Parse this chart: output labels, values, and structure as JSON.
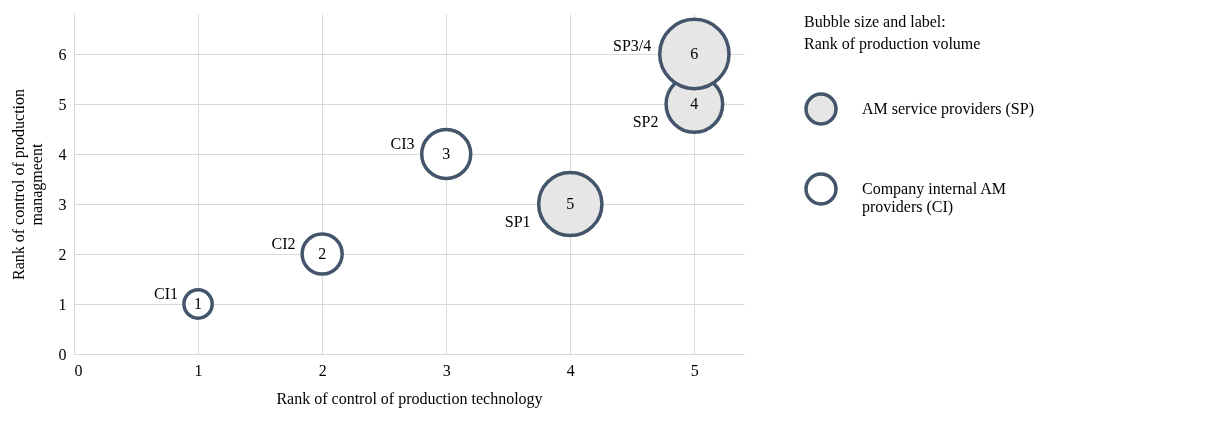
{
  "chart_data": {
    "type": "bubble",
    "xlabel": "Rank of control of production technology",
    "ylabel": "Rank of control of production managmeent",
    "legend_title": "Bubble size and label: Rank of production volume",
    "series": [
      {
        "name": "AM service providers (SP)",
        "color": "#e7e6e6",
        "x": [
          4,
          5,
          5
        ],
        "values": [
          3,
          5,
          6
        ],
        "sizes": [
          5,
          4,
          6
        ],
        "value_labels": [
          "5",
          "4",
          "6"
        ]
      },
      {
        "name": "Company internal AM providers (CI)",
        "color": "#ffffff",
        "x": [
          1,
          2,
          3
        ],
        "values": [
          1,
          2,
          4
        ],
        "sizes": [
          1,
          2,
          3
        ],
        "value_labels": [
          "1",
          "2",
          "3"
        ]
      }
    ],
    "annotations": [
      {
        "text": "SP1",
        "x": 4,
        "y": 3
      },
      {
        "text": "SP2",
        "x": 5,
        "y": 5
      },
      {
        "text": "SP3/4",
        "x": 5,
        "y": 6
      },
      {
        "text": "CI1",
        "x": 1,
        "y": 1
      },
      {
        "text": "CI2",
        "x": 2,
        "y": 2
      },
      {
        "text": "CI3",
        "x": 3,
        "y": 4
      }
    ],
    "xlim": [
      0,
      5.4
    ],
    "xticks": [
      0,
      1,
      2,
      3,
      4,
      5
    ],
    "ylim": [
      0,
      6.8
    ],
    "yticks": [
      0,
      1,
      2,
      3,
      4,
      5,
      6
    ],
    "grid": true,
    "legend": "right"
  }
}
